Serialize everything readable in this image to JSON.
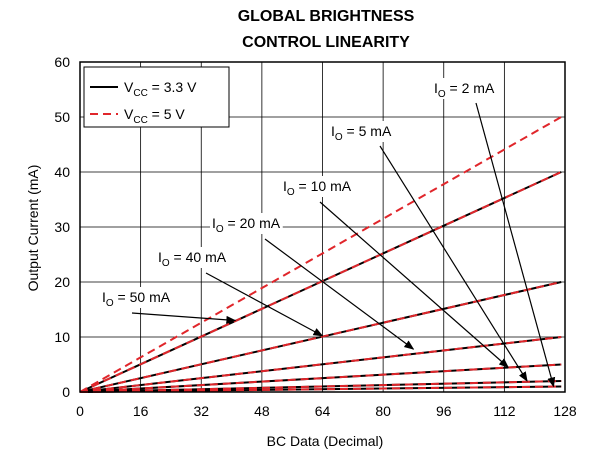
{
  "chart_data": {
    "type": "line",
    "title": [
      "GLOBAL BRIGHTNESS",
      "CONTROL LINEARITY"
    ],
    "xlabel": "BC Data (Decimal)",
    "ylabel": "Output Current (mA)",
    "xlim": [
      0,
      128
    ],
    "ylim": [
      0,
      60
    ],
    "xticks": [
      0,
      16,
      32,
      48,
      64,
      80,
      96,
      112,
      128
    ],
    "yticks": [
      0,
      10,
      20,
      30,
      40,
      50,
      60
    ],
    "grid": true,
    "legend_position": "top-left",
    "legend": [
      {
        "base": "V",
        "sub": "CC",
        "rest": " = 3.3 V",
        "style": "solid",
        "color": "#000000"
      },
      {
        "base": "V",
        "sub": "CC",
        "rest": " = 5 V",
        "style": "dashed",
        "color": "#e0262b"
      }
    ],
    "series": [
      {
        "name": "VCC = 3.3 V",
        "style": "solid",
        "color": "#000000",
        "lines": [
          {
            "x": [
              0,
              127
            ],
            "y": [
              0,
              40
            ]
          },
          {
            "x": [
              0,
              127
            ],
            "y": [
              0,
              20
            ]
          },
          {
            "x": [
              0,
              127
            ],
            "y": [
              0,
              10
            ]
          },
          {
            "x": [
              0,
              127
            ],
            "y": [
              0,
              5
            ]
          },
          {
            "x": [
              0,
              127
            ],
            "y": [
              0,
              2
            ]
          },
          {
            "x": [
              0,
              127
            ],
            "y": [
              0,
              1
            ]
          }
        ]
      },
      {
        "name": "VCC = 5 V",
        "style": "dashed",
        "color": "#e0262b",
        "lines": [
          {
            "x": [
              0,
              127
            ],
            "y": [
              0,
              50
            ]
          },
          {
            "x": [
              0,
              127
            ],
            "y": [
              0,
              40
            ]
          },
          {
            "x": [
              0,
              127
            ],
            "y": [
              0,
              20
            ]
          },
          {
            "x": [
              0,
              127
            ],
            "y": [
              0,
              10
            ]
          },
          {
            "x": [
              0,
              127
            ],
            "y": [
              0,
              5
            ]
          },
          {
            "x": [
              0,
              127
            ],
            "y": [
              0,
              2
            ]
          },
          {
            "x": [
              0,
              127
            ],
            "y": [
              0,
              1
            ]
          }
        ]
      }
    ],
    "annotations": [
      {
        "base": "I",
        "sub": "O",
        "rest": " = 2 mA",
        "value_mA": 2,
        "arrow_to": {
          "x": 125,
          "y": 1
        }
      },
      {
        "base": "I",
        "sub": "O",
        "rest": " = 5 mA",
        "value_mA": 5,
        "arrow_to": {
          "x": 118,
          "y": 2
        }
      },
      {
        "base": "I",
        "sub": "O",
        "rest": " = 10 mA",
        "value_mA": 10,
        "arrow_to": {
          "x": 113,
          "y": 4.5
        }
      },
      {
        "base": "I",
        "sub": "O",
        "rest": " = 20 mA",
        "value_mA": 20,
        "arrow_to": {
          "x": 88,
          "y": 7.8
        }
      },
      {
        "base": "I",
        "sub": "O",
        "rest": " = 40 mA",
        "value_mA": 40,
        "arrow_to": {
          "x": 64,
          "y": 10.2
        }
      },
      {
        "base": "I",
        "sub": "O",
        "rest": " = 50 mA",
        "value_mA": 50,
        "arrow_to": {
          "x": 41,
          "y": 13
        }
      }
    ]
  }
}
